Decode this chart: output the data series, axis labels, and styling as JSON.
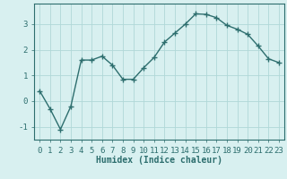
{
  "x": [
    0,
    1,
    2,
    3,
    4,
    5,
    6,
    7,
    8,
    9,
    10,
    11,
    12,
    13,
    14,
    15,
    16,
    17,
    18,
    19,
    20,
    21,
    22,
    23
  ],
  "y": [
    0.4,
    -0.3,
    -1.1,
    -0.2,
    1.6,
    1.6,
    1.75,
    1.4,
    0.85,
    0.85,
    1.3,
    1.7,
    2.3,
    2.65,
    3.0,
    3.4,
    3.38,
    3.25,
    2.95,
    2.8,
    2.6,
    2.15,
    1.65,
    1.5
  ],
  "line_color": "#2d6e6e",
  "marker": "+",
  "markersize": 4,
  "linewidth": 1.0,
  "xlabel": "Humidex (Indice chaleur)",
  "xlabel_fontsize": 7,
  "xlim": [
    -0.5,
    23.5
  ],
  "ylim": [
    -1.5,
    3.8
  ],
  "yticks": [
    -1,
    0,
    1,
    2,
    3
  ],
  "xticks": [
    0,
    1,
    2,
    3,
    4,
    5,
    6,
    7,
    8,
    9,
    10,
    11,
    12,
    13,
    14,
    15,
    16,
    17,
    18,
    19,
    20,
    21,
    22,
    23
  ],
  "grid_color": "#b0d8d8",
  "background_color": "#d8f0f0",
  "axis_color": "#2d6e6e",
  "tick_fontsize": 6.5,
  "figsize": [
    3.2,
    2.0
  ],
  "dpi": 100
}
